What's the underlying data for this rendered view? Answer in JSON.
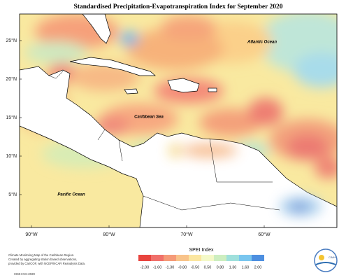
{
  "map": {
    "title": "Standardised Precipitation-Evapotranspiration Index for September 2020",
    "labels": {
      "atlantic": "Atlantic Ocean",
      "caribbean": "Caribbean Sea",
      "pacific": "Pacific Ocean"
    },
    "lat_ticks": [
      "25°N",
      "20°N",
      "15°N",
      "10°N",
      "5°N"
    ],
    "lon_ticks": [
      "90°W",
      "80°W",
      "70°W",
      "60°W"
    ],
    "footnote": [
      "Climate Monitoring Map of the Caribbean Region.",
      "Created by aggregating station based observations,",
      "provided by CariCOF, with NCEP/NCAR Reanalysis Data."
    ],
    "credit": "CIMH Oct-2020",
    "legend": {
      "title": "SPEI Index",
      "ticks": [
        "-2.00",
        "-1.60",
        "-1.30",
        "-0.80",
        "-0.50",
        "0.50",
        "0.80",
        "1.30",
        "1.60",
        "2.00"
      ]
    },
    "logo": "CIMH"
  }
}
